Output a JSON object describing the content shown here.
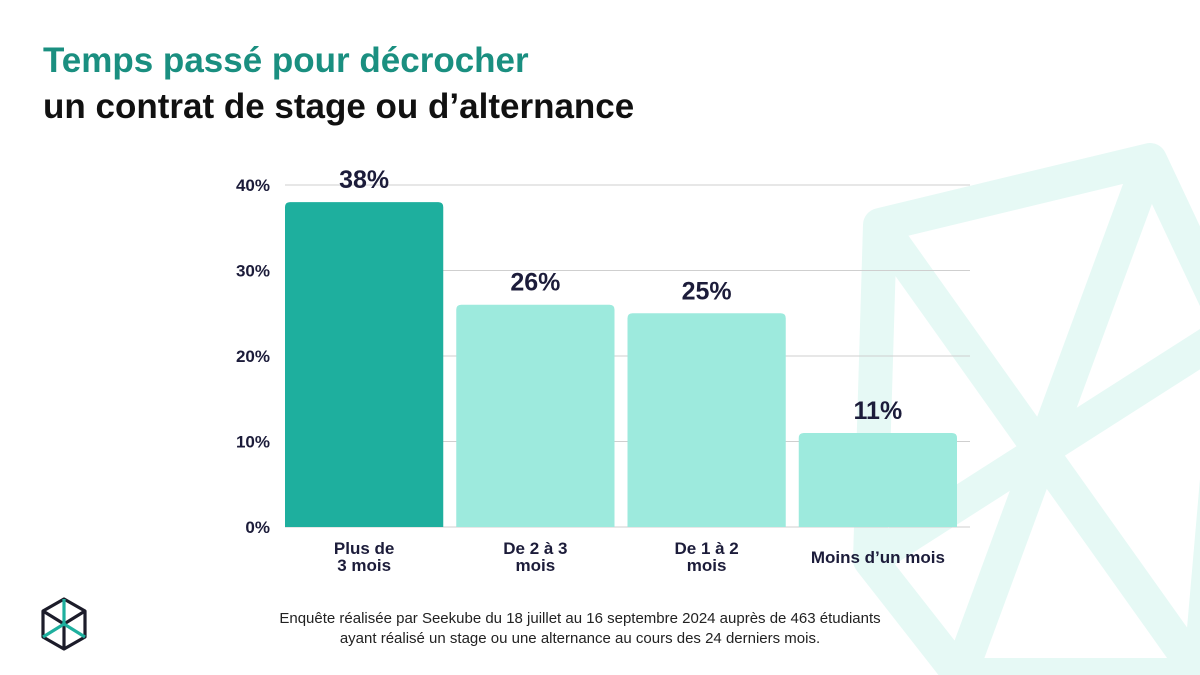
{
  "title": {
    "line1": "Temps passé pour décrocher",
    "line2": "un contrat de stage ou d’alternance"
  },
  "colors": {
    "title_accent": "#1a8f80",
    "highlight_bar": "#1eaf9e",
    "bar": "#9deadd",
    "grid": "#cfcfcf",
    "decoration": "#e6f9f5"
  },
  "chart_data": {
    "type": "bar",
    "categories": [
      [
        "Plus de",
        "3 mois"
      ],
      [
        "De 2 à 3",
        "mois"
      ],
      [
        "De 1 à 2",
        "mois"
      ],
      [
        "Moins d’un mois"
      ]
    ],
    "values": [
      38,
      26,
      25,
      11
    ],
    "value_labels": [
      "38%",
      "26%",
      "25%",
      "11%"
    ],
    "highlight_index": 0,
    "ylim": [
      0,
      40
    ],
    "yticks": [
      0,
      10,
      20,
      30,
      40
    ],
    "ytick_labels": [
      "0%",
      "10%",
      "20%",
      "30%",
      "40%"
    ],
    "grid": true,
    "xlabel": "",
    "ylabel": ""
  },
  "footnote": {
    "line1": "Enquête réalisée par Seekube du 18 juillet au 16 septembre 2024 auprès de 463 étudiants",
    "line2": "ayant réalisé un stage ou une alternance au cours des 24 derniers mois."
  },
  "logo": {
    "icon": "cube-icon"
  }
}
